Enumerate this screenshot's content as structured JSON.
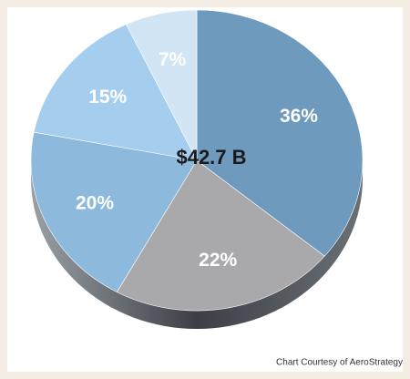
{
  "chart_data": {
    "type": "pie",
    "values": [
      36,
      22,
      20,
      15,
      7
    ],
    "value_labels": [
      "36%",
      "22%",
      "20%",
      "15%",
      "7%"
    ],
    "colors": [
      "#6d9abd",
      "#a9a9ab",
      "#8cb9dc",
      "#a4cdee",
      "#d2e5f4"
    ],
    "annotation": "$42.7 B",
    "source": "Chart Courtesy of AeroStrategy"
  }
}
